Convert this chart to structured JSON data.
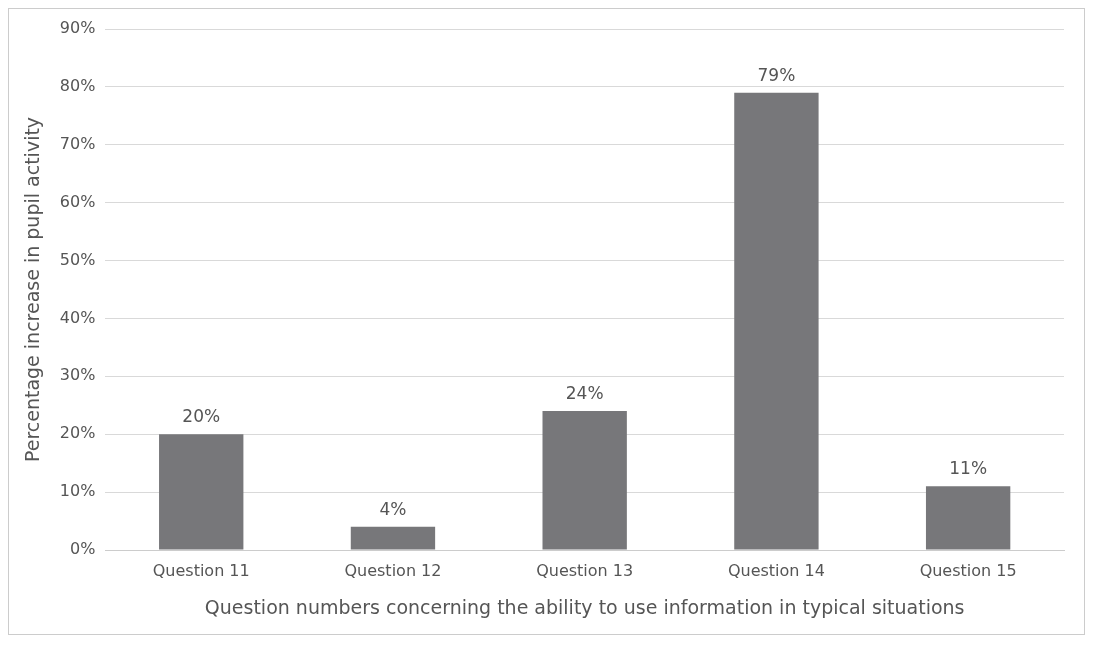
{
  "chart_data": {
    "type": "bar",
    "xlabel": "Question numbers concerning the ability to use information in typical situations",
    "ylabel": "Percentage increase in pupil activity",
    "categories": [
      "Question 11",
      "Question 12",
      "Question 13",
      "Question 14",
      "Question 15"
    ],
    "values": [
      20,
      4,
      24,
      79,
      11
    ],
    "value_labels": [
      "20%",
      "4%",
      "24%",
      "79%",
      "11%"
    ],
    "color": "#77777a",
    "ylim": [
      0,
      90
    ],
    "yticks": [
      {
        "value": 0,
        "label": "0%"
      },
      {
        "value": 10,
        "label": "10%"
      },
      {
        "value": 20,
        "label": "20%"
      },
      {
        "value": 30,
        "label": "30%"
      },
      {
        "value": 40,
        "label": "40%"
      },
      {
        "value": 50,
        "label": "50%"
      },
      {
        "value": 60,
        "label": "60%"
      },
      {
        "value": 70,
        "label": "70%"
      },
      {
        "value": 80,
        "label": "80%"
      },
      {
        "value": 90,
        "label": "90%"
      }
    ],
    "grid": "y",
    "legend": false
  }
}
